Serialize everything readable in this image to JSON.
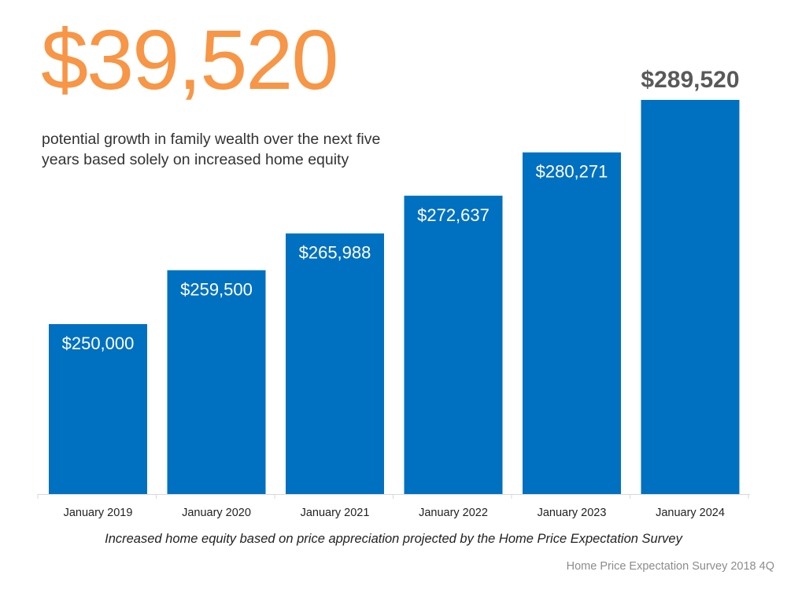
{
  "headline": {
    "value": "$39,520",
    "color": "#f79646"
  },
  "subtitle": "potential growth in family wealth over the next five years based solely on increased home equity",
  "caption": "Increased home equity based on price appreciation projected by the Home Price Expectation Survey",
  "source": "Home Price Expectation Survey 2018 4Q",
  "chart_data": {
    "type": "bar",
    "categories": [
      "January 2019",
      "January 2020",
      "January 2021",
      "January 2022",
      "January 2023",
      "January 2024"
    ],
    "values": [
      250000,
      259500,
      265988,
      272637,
      280271,
      289520
    ],
    "data_labels": [
      "$250,000",
      "$259,500",
      "$265,988",
      "$272,637",
      "$280,271",
      "$289,520"
    ],
    "grid": false,
    "legend": "none",
    "bar_color": "#0070c0",
    "inside_label_color": "#ffffff",
    "outside_label_color": "#595959"
  }
}
